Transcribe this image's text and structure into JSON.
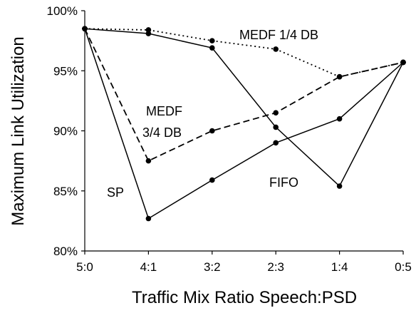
{
  "chart_data": {
    "type": "line",
    "title": "",
    "xlabel": "Traffic Mix Ratio Speech:PSD",
    "ylabel": "Maximum Link Utilization",
    "categories": [
      "5:0",
      "4:1",
      "3:2",
      "2:3",
      "1:4",
      "0:5"
    ],
    "ylim": [
      80,
      100
    ],
    "yticks": [
      80,
      85,
      90,
      95,
      100
    ],
    "ytick_labels": [
      "80%",
      "85%",
      "90%",
      "95%",
      "100%"
    ],
    "grid": false,
    "legend": "none",
    "series": [
      {
        "name": "SP",
        "style": "solid",
        "values": [
          98.5,
          82.7,
          85.9,
          89.0,
          91.0,
          95.7
        ]
      },
      {
        "name": "FIFO",
        "style": "solid",
        "values": [
          98.5,
          98.1,
          96.9,
          90.3,
          85.4,
          95.7
        ]
      },
      {
        "name": "MEDF 3/4 DB",
        "style": "dashed",
        "values": [
          98.5,
          87.5,
          90.0,
          91.5,
          94.5,
          95.7
        ]
      },
      {
        "name": "MEDF 1/4 DB",
        "style": "dotted",
        "values": [
          98.5,
          98.4,
          97.5,
          96.8,
          94.5,
          95.7
        ]
      }
    ],
    "annotations": [
      {
        "text": "MEDF 1/4 DB"
      },
      {
        "text": "MEDF"
      },
      {
        "text": "3/4 DB"
      },
      {
        "text": "SP"
      },
      {
        "text": "FIFO"
      }
    ]
  }
}
